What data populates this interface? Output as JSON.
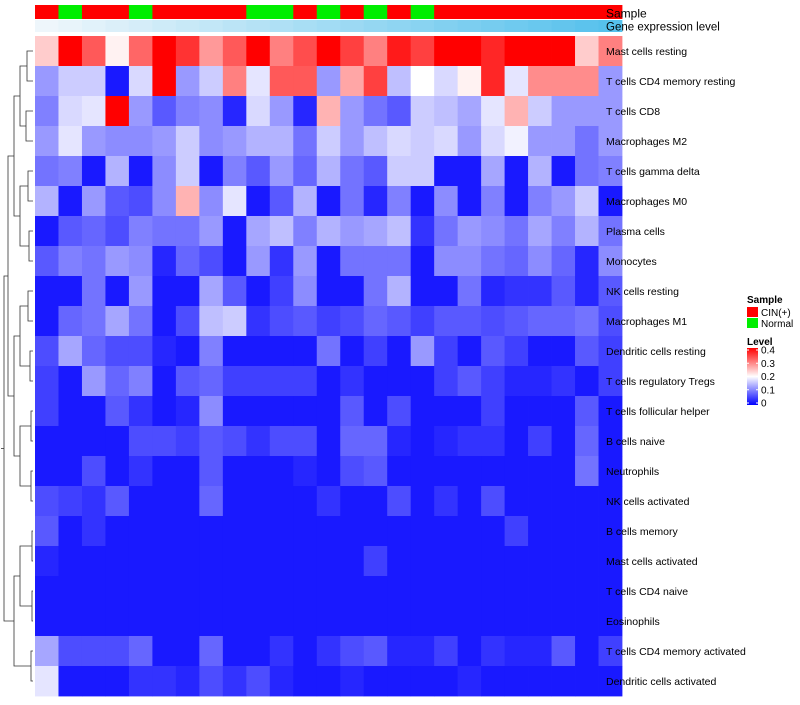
{
  "chart_data": {
    "type": "heatmap",
    "annotation_tracks": [
      {
        "label": "Sample",
        "values": [
          "CIN(+)",
          "Normal",
          "CIN(+)",
          "CIN(+)",
          "Normal",
          "CIN(+)",
          "CIN(+)",
          "CIN(+)",
          "CIN(+)",
          "Normal",
          "Normal",
          "CIN(+)",
          "Normal",
          "CIN(+)",
          "Normal",
          "CIN(+)",
          "Normal",
          "CIN(+)",
          "CIN(+)",
          "CIN(+)",
          "CIN(+)",
          "CIN(+)",
          "CIN(+)",
          "CIN(+)",
          "CIN(+)"
        ]
      },
      {
        "label": "Gene expression level",
        "values": [
          0.02,
          0.04,
          0.06,
          0.08,
          0.1,
          0.12,
          0.14,
          0.16,
          0.18,
          0.2,
          0.22,
          0.24,
          0.26,
          0.28,
          0.3,
          0.32,
          0.34,
          0.36,
          0.38,
          0.4,
          0.42,
          0.44,
          0.46,
          0.48,
          0.5
        ]
      }
    ],
    "rows": [
      "Mast cells resting",
      "T cells CD4 memory resting",
      "T cells CD8",
      "Macrophages M2",
      "T cells gamma delta",
      "Macrophages M0",
      "Plasma cells",
      "Monocytes",
      "NK cells resting",
      "Macrophages M1",
      "Dendritic cells resting",
      "T cells regulatory  Tregs",
      "T cells follicular helper",
      "B cells naive",
      "Neutrophils",
      "NK cells activated",
      "B cells memory",
      "Mast cells activated",
      "T cells CD4 naive",
      "Eosinophils",
      "T cells CD4 memory activated",
      "Dendritic cells activated"
    ],
    "values": [
      [
        0.24,
        0.4,
        0.33,
        0.21,
        0.32,
        0.4,
        0.36,
        0.28,
        0.33,
        0.4,
        0.3,
        0.34,
        0.4,
        0.35,
        0.3,
        0.38,
        0.35,
        0.4,
        0.4,
        0.37,
        0.4,
        0.4,
        0.4,
        0.24,
        0.3
      ],
      [
        0.12,
        0.16,
        0.16,
        0.02,
        0.17,
        0.4,
        0.12,
        0.16,
        0.3,
        0.18,
        0.33,
        0.33,
        0.12,
        0.27,
        0.35,
        0.15,
        0.2,
        0.17,
        0.21,
        0.37,
        0.18,
        0.29,
        0.29,
        0.29,
        0.12
      ],
      [
        0.1,
        0.17,
        0.18,
        0.4,
        0.12,
        0.07,
        0.1,
        0.11,
        0.03,
        0.17,
        0.12,
        0.03,
        0.26,
        0.12,
        0.09,
        0.07,
        0.16,
        0.15,
        0.13,
        0.18,
        0.26,
        0.16,
        0.12,
        0.12,
        0.12
      ],
      [
        0.12,
        0.18,
        0.12,
        0.11,
        0.11,
        0.12,
        0.16,
        0.11,
        0.12,
        0.14,
        0.14,
        0.09,
        0.16,
        0.12,
        0.15,
        0.17,
        0.16,
        0.17,
        0.12,
        0.17,
        0.19,
        0.12,
        0.12,
        0.09,
        0.12
      ],
      [
        0.09,
        0.1,
        0.02,
        0.14,
        0.02,
        0.11,
        0.16,
        0.02,
        0.1,
        0.07,
        0.12,
        0.08,
        0.14,
        0.09,
        0.07,
        0.16,
        0.16,
        0.02,
        0.02,
        0.13,
        0.02,
        0.14,
        0.02,
        0.09,
        0.1
      ],
      [
        0.14,
        0.02,
        0.12,
        0.07,
        0.06,
        0.11,
        0.26,
        0.11,
        0.18,
        0.02,
        0.07,
        0.14,
        0.02,
        0.09,
        0.03,
        0.1,
        0.02,
        0.11,
        0.02,
        0.1,
        0.02,
        0.1,
        0.12,
        0.16,
        0.02
      ],
      [
        0.02,
        0.07,
        0.08,
        0.06,
        0.1,
        0.09,
        0.09,
        0.12,
        0.02,
        0.13,
        0.15,
        0.1,
        0.14,
        0.12,
        0.13,
        0.15,
        0.04,
        0.09,
        0.12,
        0.11,
        0.09,
        0.13,
        0.1,
        0.14,
        0.09
      ],
      [
        0.07,
        0.1,
        0.09,
        0.12,
        0.11,
        0.03,
        0.08,
        0.06,
        0.02,
        0.12,
        0.04,
        0.12,
        0.02,
        0.09,
        0.09,
        0.09,
        0.02,
        0.11,
        0.11,
        0.09,
        0.08,
        0.11,
        0.08,
        0.03,
        0.11
      ],
      [
        0.02,
        0.02,
        0.09,
        0.02,
        0.12,
        0.02,
        0.02,
        0.13,
        0.07,
        0.02,
        0.05,
        0.11,
        0.02,
        0.02,
        0.09,
        0.14,
        0.02,
        0.02,
        0.09,
        0.03,
        0.04,
        0.04,
        0.07,
        0.03,
        0.07
      ],
      [
        0.02,
        0.08,
        0.09,
        0.13,
        0.09,
        0.02,
        0.06,
        0.15,
        0.16,
        0.04,
        0.06,
        0.07,
        0.05,
        0.06,
        0.08,
        0.07,
        0.05,
        0.07,
        0.07,
        0.06,
        0.07,
        0.08,
        0.08,
        0.09,
        0.06
      ],
      [
        0.06,
        0.13,
        0.08,
        0.06,
        0.06,
        0.03,
        0.02,
        0.1,
        0.02,
        0.02,
        0.02,
        0.02,
        0.09,
        0.02,
        0.05,
        0.02,
        0.12,
        0.05,
        0.02,
        0.07,
        0.05,
        0.02,
        0.02,
        0.07,
        0.05
      ],
      [
        0.05,
        0.02,
        0.12,
        0.08,
        0.1,
        0.02,
        0.07,
        0.08,
        0.05,
        0.05,
        0.05,
        0.05,
        0.02,
        0.04,
        0.02,
        0.02,
        0.02,
        0.05,
        0.07,
        0.05,
        0.03,
        0.03,
        0.04,
        0.02,
        0.05
      ],
      [
        0.05,
        0.02,
        0.02,
        0.07,
        0.04,
        0.02,
        0.03,
        0.11,
        0.02,
        0.02,
        0.02,
        0.02,
        0.02,
        0.07,
        0.02,
        0.06,
        0.02,
        0.02,
        0.02,
        0.05,
        0.02,
        0.02,
        0.02,
        0.07,
        0.02
      ],
      [
        0.02,
        0.02,
        0.02,
        0.02,
        0.06,
        0.06,
        0.05,
        0.07,
        0.06,
        0.04,
        0.06,
        0.06,
        0.02,
        0.08,
        0.08,
        0.03,
        0.02,
        0.03,
        0.04,
        0.04,
        0.02,
        0.05,
        0.02,
        0.08,
        0.02
      ],
      [
        0.02,
        0.02,
        0.06,
        0.02,
        0.04,
        0.02,
        0.02,
        0.07,
        0.02,
        0.02,
        0.02,
        0.03,
        0.02,
        0.06,
        0.07,
        0.02,
        0.02,
        0.02,
        0.02,
        0.02,
        0.02,
        0.02,
        0.02,
        0.09,
        0.02
      ],
      [
        0.06,
        0.05,
        0.04,
        0.07,
        0.02,
        0.02,
        0.02,
        0.08,
        0.02,
        0.02,
        0.02,
        0.02,
        0.04,
        0.02,
        0.02,
        0.06,
        0.02,
        0.04,
        0.02,
        0.06,
        0.02,
        0.02,
        0.02,
        0.02,
        0.02
      ],
      [
        0.07,
        0.02,
        0.04,
        0.02,
        0.02,
        0.02,
        0.02,
        0.02,
        0.02,
        0.02,
        0.02,
        0.02,
        0.02,
        0.02,
        0.02,
        0.02,
        0.02,
        0.02,
        0.02,
        0.02,
        0.05,
        0.02,
        0.02,
        0.02,
        0.02
      ],
      [
        0.03,
        0.02,
        0.02,
        0.02,
        0.02,
        0.02,
        0.02,
        0.02,
        0.02,
        0.02,
        0.02,
        0.02,
        0.02,
        0.02,
        0.05,
        0.02,
        0.02,
        0.02,
        0.02,
        0.02,
        0.02,
        0.02,
        0.02,
        0.02,
        0.02
      ],
      [
        0.02,
        0.02,
        0.02,
        0.02,
        0.02,
        0.02,
        0.02,
        0.02,
        0.02,
        0.02,
        0.02,
        0.02,
        0.02,
        0.02,
        0.02,
        0.02,
        0.02,
        0.02,
        0.02,
        0.02,
        0.02,
        0.02,
        0.02,
        0.02,
        0.02
      ],
      [
        0.02,
        0.02,
        0.02,
        0.02,
        0.02,
        0.02,
        0.02,
        0.02,
        0.02,
        0.02,
        0.02,
        0.02,
        0.02,
        0.02,
        0.02,
        0.02,
        0.02,
        0.02,
        0.02,
        0.02,
        0.02,
        0.02,
        0.02,
        0.02,
        0.02
      ],
      [
        0.13,
        0.06,
        0.06,
        0.06,
        0.08,
        0.02,
        0.02,
        0.08,
        0.02,
        0.02,
        0.04,
        0.02,
        0.04,
        0.06,
        0.07,
        0.03,
        0.03,
        0.05,
        0.02,
        0.04,
        0.03,
        0.03,
        0.07,
        0.02,
        0.05
      ],
      [
        0.18,
        0.02,
        0.02,
        0.02,
        0.04,
        0.04,
        0.03,
        0.06,
        0.04,
        0.06,
        0.03,
        0.02,
        0.02,
        0.03,
        0.02,
        0.02,
        0.02,
        0.02,
        0.03,
        0.02,
        0.02,
        0.02,
        0.02,
        0.02,
        0.02
      ]
    ],
    "dendrogram_order": [
      0,
      1,
      2,
      3,
      4,
      5,
      6,
      7,
      8,
      9,
      10,
      11,
      12,
      13,
      14,
      15,
      16,
      17,
      18,
      19,
      20,
      21
    ],
    "legend_sample": {
      "title": "Sample",
      "entries": [
        {
          "label": "CIN(+)",
          "color": "#ff0000"
        },
        {
          "label": "Normal",
          "color": "#00ee00"
        }
      ]
    },
    "legend_level": {
      "title": "Level",
      "ticks": [
        "0.4",
        "0.3",
        "0.2",
        "0.1",
        "0"
      ],
      "range": [
        0,
        0.4
      ],
      "colors": {
        "low": "#0000ff",
        "mid": "#ffffff",
        "high": "#ff0000"
      }
    },
    "track_colors": {
      "expr_low": "#eef6fb",
      "expr_high": "#56c1ec"
    }
  }
}
